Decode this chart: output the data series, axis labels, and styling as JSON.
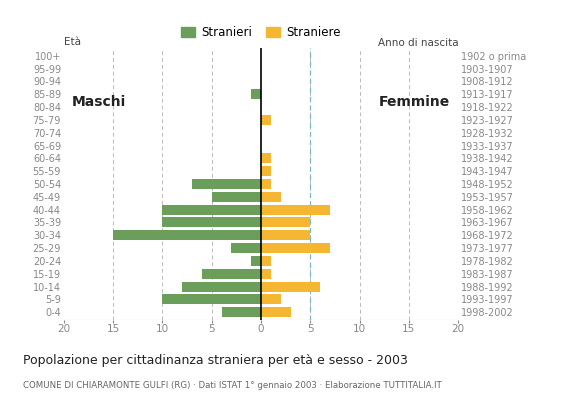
{
  "age_groups": [
    "0-4",
    "5-9",
    "10-14",
    "15-19",
    "20-24",
    "25-29",
    "30-34",
    "35-39",
    "40-44",
    "45-49",
    "50-54",
    "55-59",
    "60-64",
    "65-69",
    "70-74",
    "75-79",
    "80-84",
    "85-89",
    "90-94",
    "95-99",
    "100+"
  ],
  "birth_years": [
    "1998-2002",
    "1993-1997",
    "1988-1992",
    "1983-1987",
    "1978-1982",
    "1973-1977",
    "1968-1972",
    "1963-1967",
    "1958-1962",
    "1953-1957",
    "1948-1952",
    "1943-1947",
    "1938-1942",
    "1933-1937",
    "1928-1932",
    "1923-1927",
    "1918-1922",
    "1913-1917",
    "1908-1912",
    "1903-1907",
    "1902 o prima"
  ],
  "maschi": [
    4,
    10,
    8,
    6,
    1,
    3,
    15,
    10,
    10,
    5,
    7,
    0,
    0,
    0,
    0,
    0,
    0,
    1,
    0,
    0,
    0
  ],
  "femmine": [
    3,
    2,
    6,
    1,
    1,
    7,
    5,
    5,
    7,
    2,
    1,
    1,
    1,
    0,
    0,
    1,
    0,
    0,
    0,
    0,
    0
  ],
  "color_maschi": "#6a9e5a",
  "color_femmine": "#f5b731",
  "xlim": 20,
  "title": "Popolazione per cittadinanza straniera per età e sesso - 2003",
  "subtitle": "COMUNE DI CHIARAMONTE GULFI (RG) · Dati ISTAT 1° gennaio 2003 · Elaborazione TUTTITALIA.IT",
  "legend_maschi": "Stranieri",
  "legend_femmine": "Straniere",
  "label_eta": "Età",
  "label_anno": "Anno di nascita",
  "label_maschi": "Maschi",
  "label_femmine": "Femmine",
  "grid_color": "#bbbbbb",
  "dashed_line_color": "#7ab8c8",
  "background_color": "#ffffff",
  "tick_color": "#888888"
}
